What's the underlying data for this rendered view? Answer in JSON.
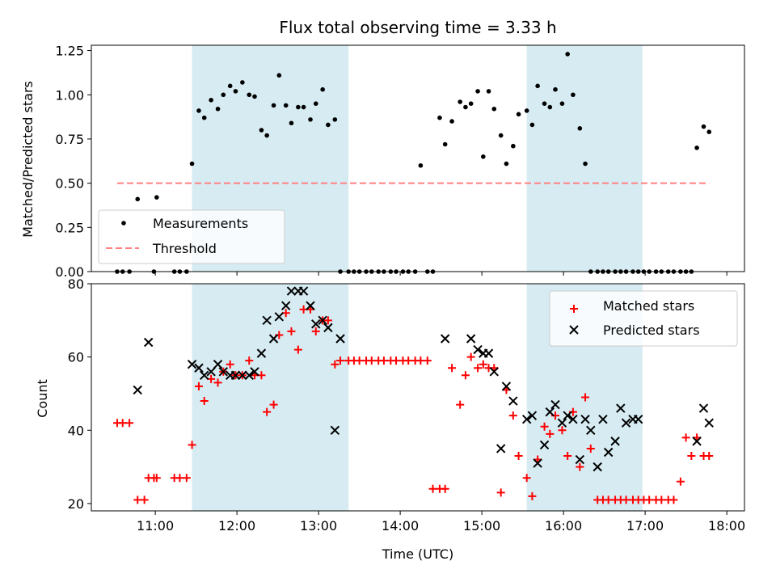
{
  "chart_data": [
    {
      "type": "scatter",
      "title": "Flux total observing time = 3.33 h",
      "xlabel": "",
      "ylabel": "Matched/Predicted stars",
      "xlim": [
        "10:13",
        "18:13"
      ],
      "ylim": [
        0,
        1.28
      ],
      "yticks": [
        "0.00",
        "0.25",
        "0.50",
        "0.75",
        "1.00",
        "1.25"
      ],
      "shaded_intervals": [
        [
          "11:27",
          "13:22"
        ],
        [
          "15:33",
          "16:58"
        ]
      ],
      "legend": {
        "position": "lower left",
        "entries": [
          "Measurements",
          "Threshold"
        ]
      },
      "series": [
        {
          "name": "Measurements",
          "color": "#000000",
          "marker": "dot",
          "x": [
            "10:32",
            "10:36",
            "10:41",
            "10:47",
            "10:59",
            "11:01",
            "11:14",
            "11:18",
            "11:23",
            "11:27",
            "11:32",
            "11:36",
            "11:41",
            "11:46",
            "11:50",
            "11:55",
            "11:59",
            "12:04",
            "12:09",
            "12:13",
            "12:18",
            "12:22",
            "12:27",
            "12:31",
            "12:36",
            "12:40",
            "12:45",
            "12:49",
            "12:54",
            "12:58",
            "13:03",
            "13:07",
            "13:12",
            "13:16",
            "13:22",
            "13:26",
            "13:30",
            "13:35",
            "13:39",
            "13:44",
            "13:48",
            "13:53",
            "13:57",
            "14:02",
            "14:06",
            "14:11",
            "14:15",
            "14:20",
            "14:24",
            "14:29",
            "14:33",
            "14:38",
            "14:44",
            "14:48",
            "14:52",
            "14:57",
            "15:01",
            "15:05",
            "15:09",
            "15:14",
            "15:18",
            "15:23",
            "15:27",
            "15:33",
            "15:37",
            "15:41",
            "15:46",
            "15:50",
            "15:54",
            "15:59",
            "16:03",
            "16:07",
            "16:12",
            "16:16",
            "16:20",
            "16:25",
            "16:29",
            "16:33",
            "16:38",
            "16:42",
            "16:46",
            "16:51",
            "16:55",
            "16:59",
            "17:03",
            "17:08",
            "17:12",
            "17:17",
            "17:21",
            "17:26",
            "17:30",
            "17:34",
            "17:38",
            "17:43",
            "17:47"
          ],
          "y": [
            0.0,
            0.0,
            0.0,
            0.41,
            0.0,
            0.42,
            0.0,
            0.0,
            0.0,
            0.61,
            0.91,
            0.87,
            0.97,
            0.92,
            1.0,
            1.05,
            1.02,
            1.07,
            1.0,
            0.99,
            0.8,
            0.77,
            0.94,
            1.11,
            0.94,
            0.84,
            0.93,
            0.93,
            0.86,
            0.95,
            1.03,
            0.83,
            0.86,
            0.0,
            0.0,
            0.0,
            0.0,
            0.0,
            0.0,
            0.0,
            0.0,
            0.0,
            0.0,
            0.0,
            0.0,
            0.0,
            0.6,
            0.0,
            0.0,
            0.87,
            0.72,
            0.85,
            0.96,
            0.93,
            0.95,
            1.02,
            0.65,
            1.02,
            0.92,
            0.77,
            0.61,
            0.71,
            0.89,
            0.91,
            0.83,
            1.05,
            0.95,
            0.93,
            1.03,
            0.95,
            1.23,
            1.0,
            0.81,
            0.61,
            0.0,
            0.0,
            0.0,
            0.0,
            0.0,
            0.0,
            0.0,
            0.0,
            0.0,
            0.0,
            0.0,
            0.0,
            0.0,
            0.0,
            0.0,
            0.0,
            0.0,
            0.0,
            0.7,
            0.82,
            0.79
          ]
        },
        {
          "name": "Threshold",
          "color": "#ff8080",
          "style": "dashed",
          "x": [
            "10:32",
            "17:47"
          ],
          "y": [
            0.5,
            0.5
          ]
        }
      ]
    },
    {
      "type": "scatter",
      "title": "",
      "xlabel": "Time (UTC)",
      "ylabel": "Count",
      "xlim": [
        "10:13",
        "18:13"
      ],
      "ylim": [
        18,
        80
      ],
      "yticks": [
        "20",
        "40",
        "60",
        "80"
      ],
      "xticks": [
        "11:00",
        "12:00",
        "13:00",
        "14:00",
        "15:00",
        "16:00",
        "17:00",
        "18:00"
      ],
      "shaded_intervals": [
        [
          "11:27",
          "13:22"
        ],
        [
          "15:33",
          "16:58"
        ]
      ],
      "legend": {
        "position": "upper right",
        "entries": [
          "Matched stars",
          "Predicted stars"
        ]
      },
      "series": [
        {
          "name": "Matched stars",
          "color": "#ff0000",
          "marker": "plus",
          "x": [
            "10:32",
            "10:36",
            "10:41",
            "10:47",
            "10:52",
            "10:55",
            "10:59",
            "11:01",
            "11:14",
            "11:18",
            "11:23",
            "11:27",
            "11:32",
            "11:36",
            "11:41",
            "11:46",
            "11:50",
            "11:55",
            "11:59",
            "12:04",
            "12:09",
            "12:13",
            "12:18",
            "12:22",
            "12:27",
            "12:31",
            "12:36",
            "12:40",
            "12:45",
            "12:49",
            "12:54",
            "12:58",
            "13:03",
            "13:07",
            "13:12",
            "13:16",
            "13:22",
            "13:26",
            "13:30",
            "13:35",
            "13:39",
            "13:44",
            "13:48",
            "13:53",
            "13:57",
            "14:02",
            "14:06",
            "14:11",
            "14:15",
            "14:20",
            "14:24",
            "14:29",
            "14:33",
            "14:38",
            "14:44",
            "14:48",
            "14:52",
            "14:57",
            "15:01",
            "15:05",
            "15:09",
            "15:14",
            "15:18",
            "15:23",
            "15:27",
            "15:33",
            "15:37",
            "15:41",
            "15:46",
            "15:50",
            "15:54",
            "15:59",
            "16:03",
            "16:07",
            "16:12",
            "16:16",
            "16:20",
            "16:25",
            "16:29",
            "16:33",
            "16:38",
            "16:42",
            "16:46",
            "16:51",
            "16:55",
            "16:59",
            "17:03",
            "17:08",
            "17:12",
            "17:17",
            "17:21",
            "17:26",
            "17:30",
            "17:34",
            "17:38",
            "17:43",
            "17:47"
          ],
          "y": [
            42,
            42,
            42,
            21,
            21,
            27,
            27,
            27,
            27,
            27,
            27,
            36,
            52,
            48,
            54,
            53,
            56,
            58,
            55,
            55,
            59,
            55,
            55,
            45,
            47,
            66,
            72,
            67,
            62,
            73,
            73,
            67,
            70,
            70,
            58,
            59,
            59,
            59,
            59,
            59,
            59,
            59,
            59,
            59,
            59,
            59,
            59,
            59,
            59,
            59,
            24,
            24,
            24,
            57,
            47,
            55,
            60,
            57,
            58,
            57,
            57,
            23,
            51,
            44,
            33,
            27,
            22,
            32,
            41,
            39,
            44,
            40,
            33,
            45,
            30,
            49,
            35,
            21,
            21,
            21,
            21,
            21,
            21,
            21,
            21,
            21,
            21,
            21,
            21,
            21,
            21,
            26,
            38,
            33,
            38,
            33,
            33
          ]
        },
        {
          "name": "Predicted stars",
          "color": "#000000",
          "marker": "x",
          "x": [
            "10:47",
            "10:55",
            "11:27",
            "11:32",
            "11:36",
            "11:41",
            "11:46",
            "11:50",
            "11:55",
            "11:59",
            "12:04",
            "12:09",
            "12:13",
            "12:18",
            "12:22",
            "12:27",
            "12:31",
            "12:36",
            "12:40",
            "12:45",
            "12:49",
            "12:54",
            "12:58",
            "13:03",
            "13:07",
            "13:12",
            "13:16",
            "14:33",
            "14:52",
            "14:57",
            "15:01",
            "15:05",
            "15:09",
            "15:14",
            "15:18",
            "15:23",
            "15:33",
            "15:37",
            "15:41",
            "15:46",
            "15:50",
            "15:54",
            "15:59",
            "16:03",
            "16:07",
            "16:12",
            "16:16",
            "16:20",
            "16:25",
            "16:29",
            "16:33",
            "16:38",
            "16:42",
            "16:46",
            "16:51",
            "16:55",
            "17:38",
            "17:43",
            "17:47"
          ],
          "y": [
            51,
            64,
            58,
            57,
            55,
            56,
            58,
            56,
            55,
            55,
            55,
            55,
            56,
            61,
            70,
            65,
            71,
            74,
            78,
            78,
            78,
            74,
            69,
            70,
            68,
            40,
            65,
            65,
            65,
            62,
            61,
            61,
            56,
            35,
            52,
            48,
            43,
            44,
            31,
            36,
            45,
            47,
            42,
            44,
            43,
            32,
            43,
            40,
            30,
            43,
            34,
            37,
            46,
            42,
            43,
            43,
            37,
            46,
            42
          ]
        }
      ]
    }
  ]
}
